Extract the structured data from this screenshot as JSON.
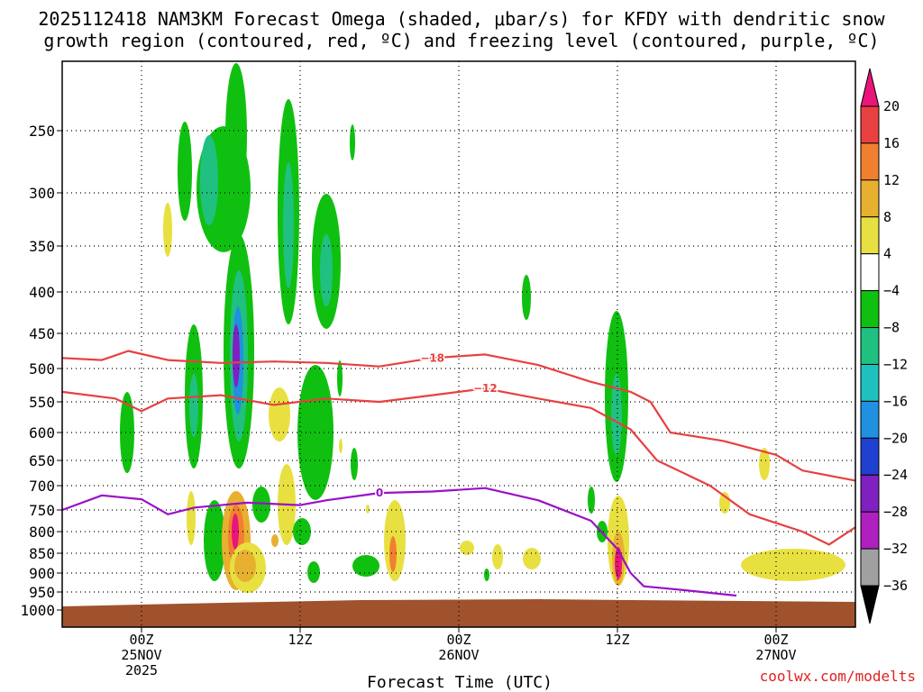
{
  "chart_data": {
    "type": "heatmap",
    "title_line1": "2025112418 NAM3KM Forecast Omega (shaded, μbar/s) for KFDY with dendritic snow",
    "title_line2": "growth region (contoured, red, ºC) and freezing level (contoured, purple, ºC)",
    "xlabel": "Forecast Time (UTC)",
    "credit": "coolwx.com/modelts",
    "y_ticks": [
      250,
      300,
      350,
      400,
      450,
      500,
      550,
      600,
      650,
      700,
      750,
      800,
      850,
      900,
      950,
      1000
    ],
    "ylim_hpa": [
      200,
      1000
    ],
    "x_ticks": [
      {
        "hour": 6,
        "line1": "00Z",
        "line2": "25NOV",
        "line3": "2025"
      },
      {
        "hour": 18,
        "line1": "12Z",
        "line2": "",
        "line3": ""
      },
      {
        "hour": 30,
        "line1": "00Z",
        "line2": "26NOV",
        "line3": ""
      },
      {
        "hour": 42,
        "line1": "12Z",
        "line2": "",
        "line3": ""
      },
      {
        "hour": 54,
        "line1": "00Z",
        "line2": "27NOV",
        "line3": ""
      }
    ],
    "xlim_hours": [
      0,
      60
    ],
    "colorbar": [
      {
        "label": "20",
        "color": "#e8157a"
      },
      {
        "label": "16",
        "color": "#e84040"
      },
      {
        "label": "12",
        "color": "#f08030"
      },
      {
        "label": "8",
        "color": "#e8b030"
      },
      {
        "label": "4",
        "color": "#e8e040"
      },
      {
        "label": "−4",
        "color": "#ffffff"
      },
      {
        "label": "−8",
        "color": "#10c010"
      },
      {
        "label": "−12",
        "color": "#20c080"
      },
      {
        "label": "−16",
        "color": "#20c0c0"
      },
      {
        "label": "−20",
        "color": "#2090e0"
      },
      {
        "label": "−24",
        "color": "#2040d0"
      },
      {
        "label": "−28",
        "color": "#8020c0"
      },
      {
        "label": "−32",
        "color": "#b020c0"
      },
      {
        "label": "−36",
        "color": "#a0a0a0"
      }
    ],
    "ground_color": "#a0522d",
    "isotherm_m18": {
      "label": "−18",
      "color": "#e84040",
      "points": [
        [
          0,
          485
        ],
        [
          3,
          488
        ],
        [
          5,
          475
        ],
        [
          8,
          488
        ],
        [
          12,
          492
        ],
        [
          16,
          490
        ],
        [
          20,
          492
        ],
        [
          24,
          497
        ],
        [
          28,
          485
        ],
        [
          32,
          480
        ],
        [
          36,
          495
        ],
        [
          40,
          520
        ],
        [
          43,
          535
        ],
        [
          44.5,
          550
        ],
        [
          46,
          600
        ],
        [
          50,
          615
        ],
        [
          54,
          640
        ],
        [
          56,
          670
        ],
        [
          60,
          690
        ]
      ]
    },
    "isotherm_m12": {
      "label": "−12",
      "color": "#e84040",
      "points": [
        [
          0,
          535
        ],
        [
          4,
          545
        ],
        [
          6,
          565
        ],
        [
          8,
          545
        ],
        [
          12,
          540
        ],
        [
          16,
          555
        ],
        [
          20,
          545
        ],
        [
          24,
          550
        ],
        [
          28,
          540
        ],
        [
          32,
          530
        ],
        [
          36,
          545
        ],
        [
          40,
          560
        ],
        [
          43,
          595
        ],
        [
          45,
          650
        ],
        [
          49,
          700
        ],
        [
          52,
          760
        ],
        [
          54,
          780
        ],
        [
          56,
          800
        ],
        [
          58,
          830
        ],
        [
          60,
          790
        ]
      ]
    },
    "isotherm_0": {
      "label": "0",
      "color": "#9a10c8",
      "points": [
        [
          0,
          750
        ],
        [
          3,
          720
        ],
        [
          6,
          728
        ],
        [
          8,
          760
        ],
        [
          10,
          745
        ],
        [
          14,
          735
        ],
        [
          18,
          740
        ],
        [
          20,
          730
        ],
        [
          24,
          715
        ],
        [
          28,
          712
        ],
        [
          32,
          705
        ],
        [
          36,
          730
        ],
        [
          40,
          775
        ],
        [
          42,
          840
        ],
        [
          43,
          900
        ],
        [
          44,
          935
        ],
        [
          47,
          945
        ],
        [
          51,
          960
        ]
      ]
    },
    "omega_cells": [
      {
        "hour": 12.8,
        "p": 310,
        "value": -8
      },
      {
        "hour": 12.9,
        "p": 350,
        "value": -12
      },
      {
        "hour": 11.2,
        "p": 300,
        "value": -12
      },
      {
        "hour": 13.4,
        "p": 520,
        "value": -20
      },
      {
        "hour": 13.4,
        "p": 480,
        "value": -28
      },
      {
        "hour": 13.0,
        "p": 820,
        "value": 20
      },
      {
        "hour": 13.5,
        "p": 880,
        "value": 12
      },
      {
        "hour": 17.5,
        "p": 350,
        "value": -12
      },
      {
        "hour": 20.0,
        "p": 380,
        "value": -16
      },
      {
        "hour": 42.0,
        "p": 580,
        "value": -16
      },
      {
        "hour": 42.0,
        "p": 880,
        "value": 20
      },
      {
        "hour": 56.5,
        "p": 880,
        "value": 4
      }
    ]
  }
}
